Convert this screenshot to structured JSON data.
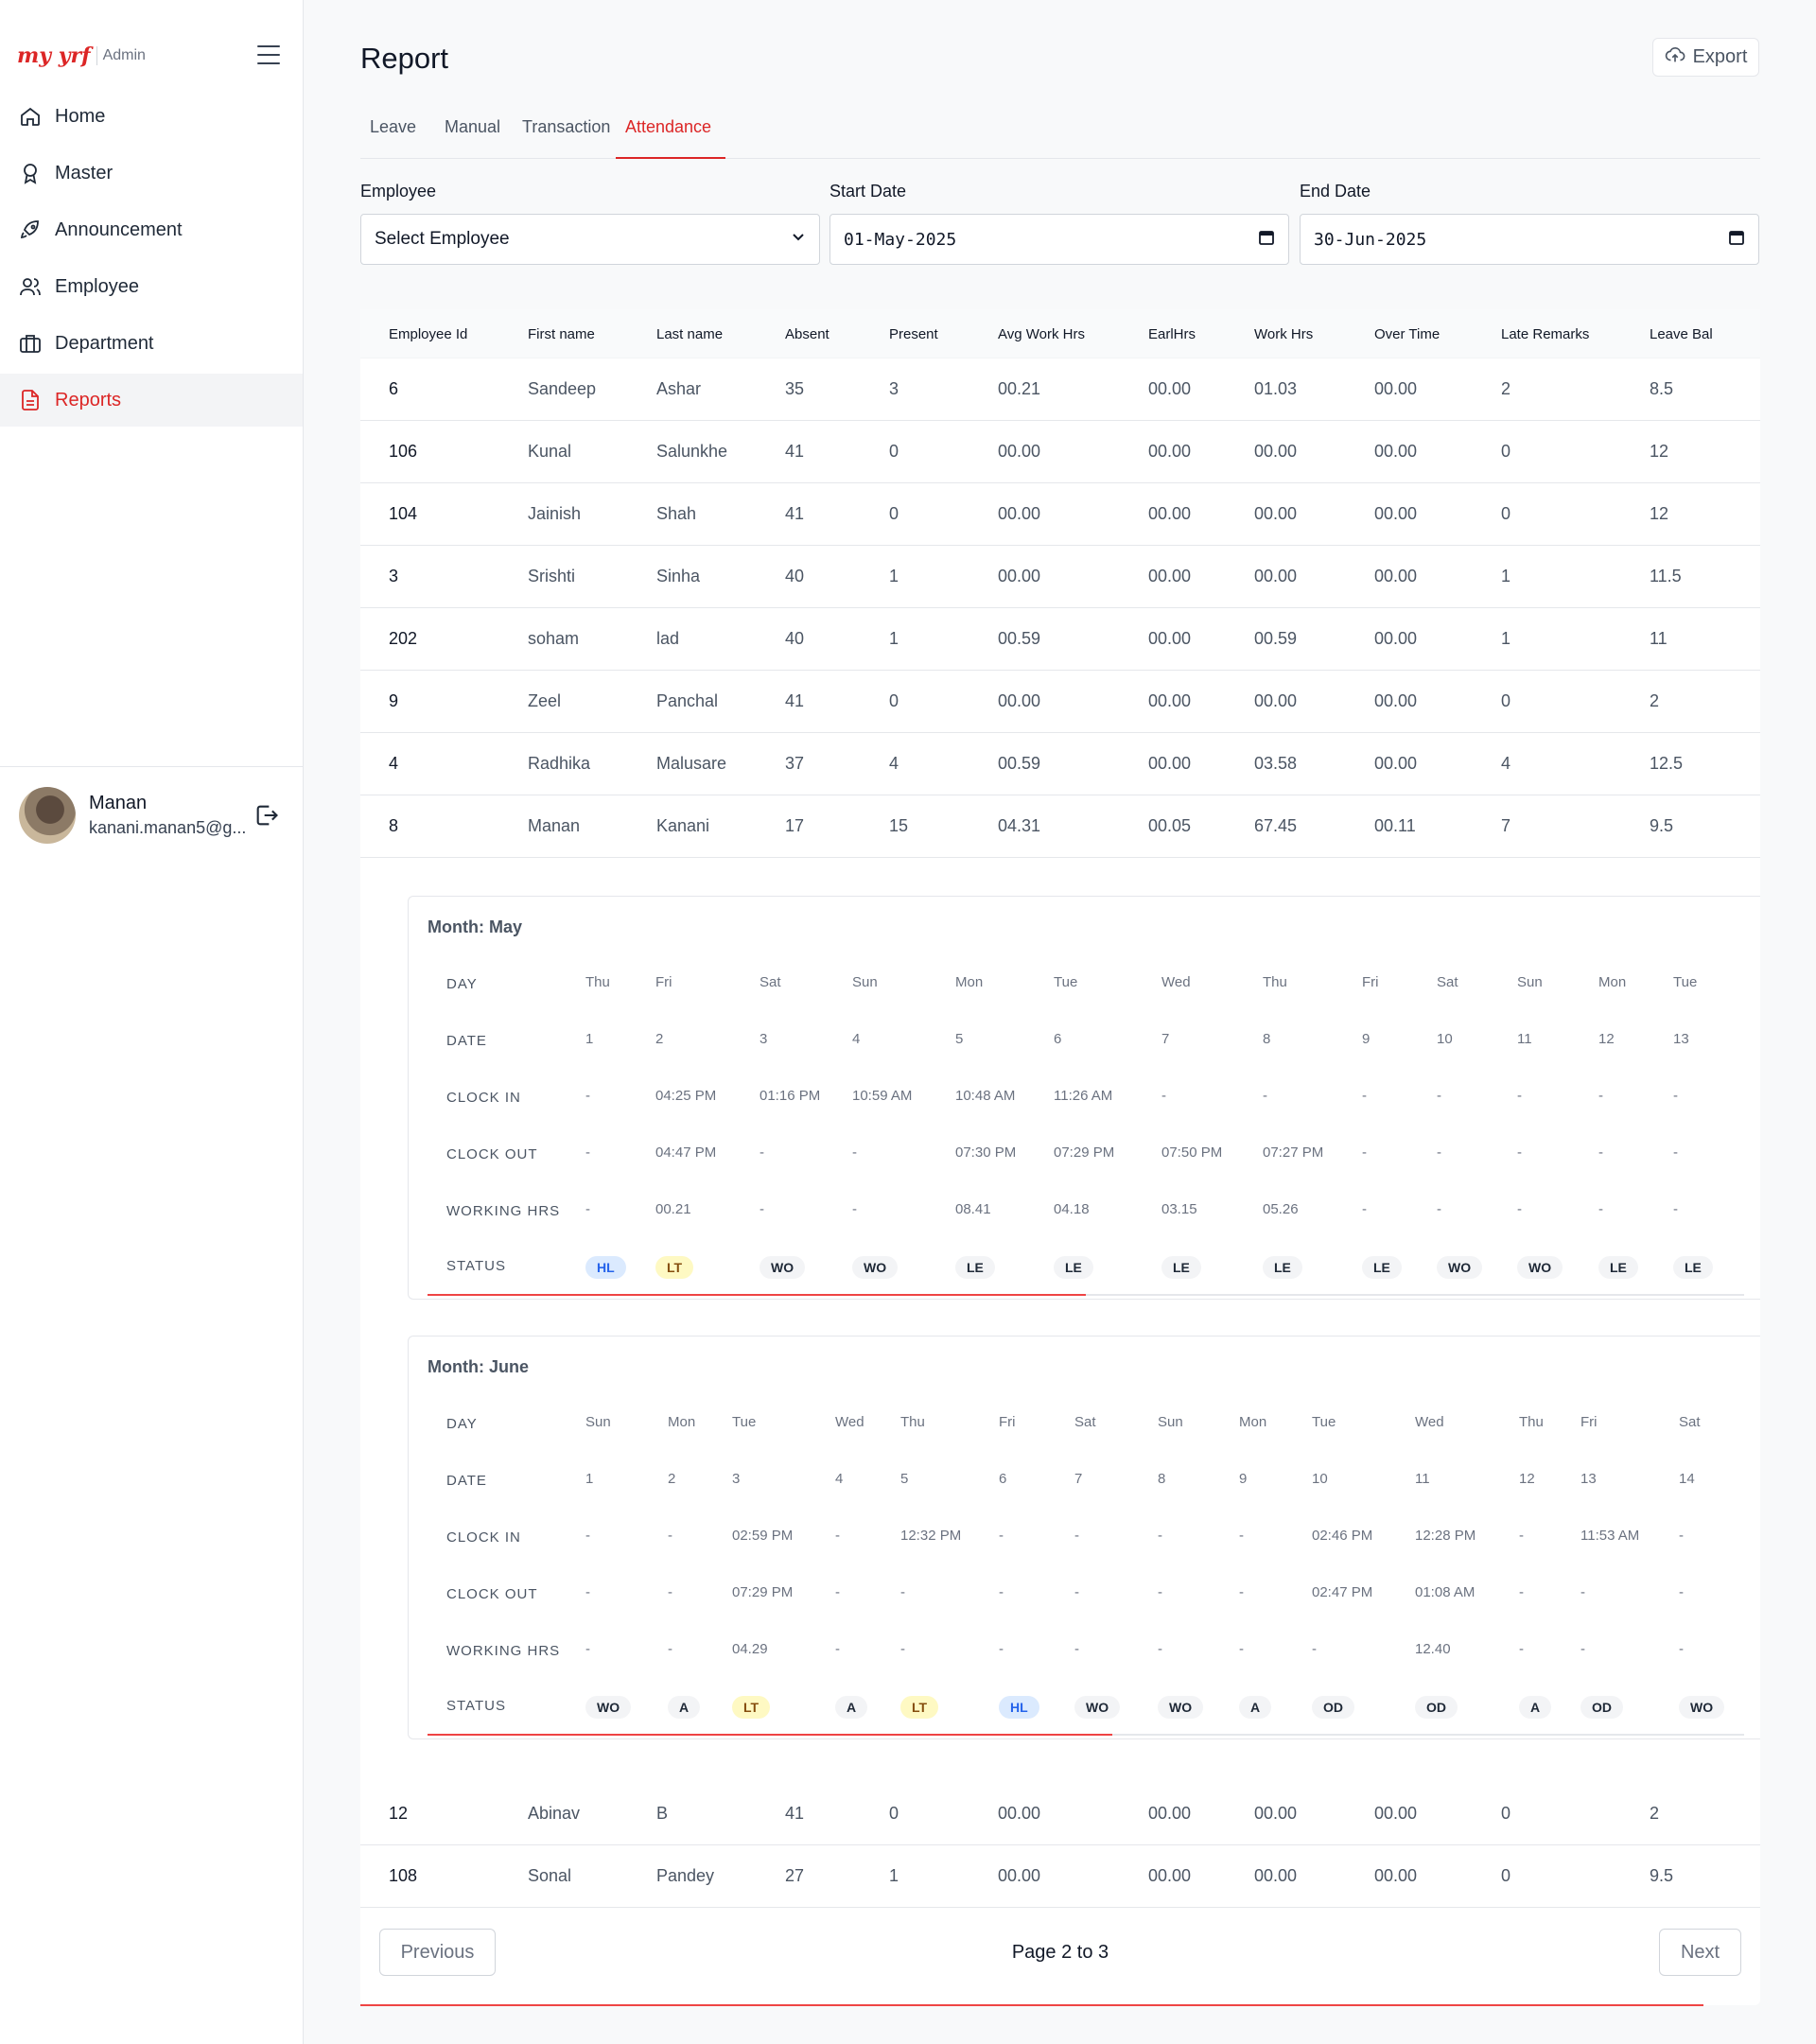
{
  "sidebar": {
    "brand": "my yrf",
    "brand_suffix": "Admin",
    "items": [
      {
        "label": "Home",
        "icon": "home-icon"
      },
      {
        "label": "Master",
        "icon": "award-icon"
      },
      {
        "label": "Announcement",
        "icon": "rocket-icon"
      },
      {
        "label": "Employee",
        "icon": "users-icon"
      },
      {
        "label": "Department",
        "icon": "briefcase-icon"
      },
      {
        "label": "Reports",
        "icon": "file-text-icon",
        "active": true
      }
    ],
    "user": {
      "name": "Manan",
      "email": "kanani.manan5@g..."
    }
  },
  "header": {
    "title": "Report",
    "export_label": "Export"
  },
  "tabs": [
    "Leave",
    "Manual",
    "Transaction",
    "Attendance"
  ],
  "active_tab": "Attendance",
  "filters": {
    "employee_label": "Employee",
    "employee_value": "Select Employee",
    "start_label": "Start Date",
    "start_value": "01-May-2025",
    "end_label": "End Date",
    "end_value": "30-Jun-2025"
  },
  "table": {
    "columns": [
      "Employee Id",
      "First name",
      "Last name",
      "Absent",
      "Present",
      "Avg Work Hrs",
      "EarlHrs",
      "Work Hrs",
      "Over Time",
      "Late Remarks",
      "Leave Bal"
    ],
    "rows_top": [
      [
        "6",
        "Sandeep",
        "Ashar",
        "35",
        "3",
        "00.21",
        "00.00",
        "01.03",
        "00.00",
        "2",
        "8.5"
      ],
      [
        "106",
        "Kunal",
        "Salunkhe",
        "41",
        "0",
        "00.00",
        "00.00",
        "00.00",
        "00.00",
        "0",
        "12"
      ],
      [
        "104",
        "Jainish",
        "Shah",
        "41",
        "0",
        "00.00",
        "00.00",
        "00.00",
        "00.00",
        "0",
        "12"
      ],
      [
        "3",
        "Srishti",
        "Sinha",
        "40",
        "1",
        "00.00",
        "00.00",
        "00.00",
        "00.00",
        "1",
        "11.5"
      ],
      [
        "202",
        "soham",
        "lad",
        "40",
        "1",
        "00.59",
        "00.00",
        "00.59",
        "00.00",
        "1",
        "11"
      ],
      [
        "9",
        "Zeel",
        "Panchal",
        "41",
        "0",
        "00.00",
        "00.00",
        "00.00",
        "00.00",
        "0",
        "2"
      ],
      [
        "4",
        "Radhika",
        "Malusare",
        "37",
        "4",
        "00.59",
        "00.00",
        "03.58",
        "00.00",
        "4",
        "12.5"
      ],
      [
        "8",
        "Manan",
        "Kanani",
        "17",
        "15",
        "04.31",
        "00.05",
        "67.45",
        "00.11",
        "7",
        "9.5"
      ]
    ],
    "rows_bottom": [
      [
        "12",
        "Abinav",
        "B",
        "41",
        "0",
        "00.00",
        "00.00",
        "00.00",
        "00.00",
        "0",
        "2"
      ],
      [
        "108",
        "Sonal",
        "Pandey",
        "27",
        "1",
        "00.00",
        "00.00",
        "00.00",
        "00.00",
        "0",
        "9.5"
      ]
    ]
  },
  "detail_labels": [
    "DAY",
    "DATE",
    "CLOCK IN",
    "CLOCK OUT",
    "WORKING HRS",
    "STATUS"
  ],
  "months": [
    {
      "title": "Month: May",
      "scroll_fraction": 0.5,
      "days": [
        {
          "day": "Thu",
          "date": "1",
          "in": "-",
          "out": "-",
          "hrs": "-",
          "status": "HL"
        },
        {
          "day": "Fri",
          "date": "2",
          "in": "04:25 PM",
          "out": "04:47 PM",
          "hrs": "00.21",
          "status": "LT"
        },
        {
          "day": "Sat",
          "date": "3",
          "in": "01:16 PM",
          "out": "-",
          "hrs": "-",
          "status": "WO"
        },
        {
          "day": "Sun",
          "date": "4",
          "in": "10:59 AM",
          "out": "-",
          "hrs": "-",
          "status": "WO"
        },
        {
          "day": "Mon",
          "date": "5",
          "in": "10:48 AM",
          "out": "07:30 PM",
          "hrs": "08.41",
          "status": "LE"
        },
        {
          "day": "Tue",
          "date": "6",
          "in": "11:26 AM",
          "out": "07:29 PM",
          "hrs": "04.18",
          "status": "LE"
        },
        {
          "day": "Wed",
          "date": "7",
          "in": "-",
          "out": "07:50 PM",
          "hrs": "03.15",
          "status": "LE"
        },
        {
          "day": "Thu",
          "date": "8",
          "in": "-",
          "out": "07:27 PM",
          "hrs": "05.26",
          "status": "LE"
        },
        {
          "day": "Fri",
          "date": "9",
          "in": "-",
          "out": "-",
          "hrs": "-",
          "status": "LE"
        },
        {
          "day": "Sat",
          "date": "10",
          "in": "-",
          "out": "-",
          "hrs": "-",
          "status": "WO"
        },
        {
          "day": "Sun",
          "date": "11",
          "in": "-",
          "out": "-",
          "hrs": "-",
          "status": "WO"
        },
        {
          "day": "Mon",
          "date": "12",
          "in": "-",
          "out": "-",
          "hrs": "-",
          "status": "LE"
        },
        {
          "day": "Tue",
          "date": "13",
          "in": "-",
          "out": "-",
          "hrs": "-",
          "status": "LE"
        }
      ]
    },
    {
      "title": "Month: June",
      "scroll_fraction": 0.52,
      "days": [
        {
          "day": "Sun",
          "date": "1",
          "in": "-",
          "out": "-",
          "hrs": "-",
          "status": "WO"
        },
        {
          "day": "Mon",
          "date": "2",
          "in": "-",
          "out": "-",
          "hrs": "-",
          "status": "A"
        },
        {
          "day": "Tue",
          "date": "3",
          "in": "02:59 PM",
          "out": "07:29 PM",
          "hrs": "04.29",
          "status": "LT"
        },
        {
          "day": "Wed",
          "date": "4",
          "in": "-",
          "out": "-",
          "hrs": "-",
          "status": "A"
        },
        {
          "day": "Thu",
          "date": "5",
          "in": "12:32 PM",
          "out": "-",
          "hrs": "-",
          "status": "LT"
        },
        {
          "day": "Fri",
          "date": "6",
          "in": "-",
          "out": "-",
          "hrs": "-",
          "status": "HL"
        },
        {
          "day": "Sat",
          "date": "7",
          "in": "-",
          "out": "-",
          "hrs": "-",
          "status": "WO"
        },
        {
          "day": "Sun",
          "date": "8",
          "in": "-",
          "out": "-",
          "hrs": "-",
          "status": "WO"
        },
        {
          "day": "Mon",
          "date": "9",
          "in": "-",
          "out": "-",
          "hrs": "-",
          "status": "A"
        },
        {
          "day": "Tue",
          "date": "10",
          "in": "02:46 PM",
          "out": "02:47 PM",
          "hrs": "-",
          "status": "OD"
        },
        {
          "day": "Wed",
          "date": "11",
          "in": "12:28 PM",
          "out": "01:08 AM",
          "hrs": "12.40",
          "status": "OD"
        },
        {
          "day": "Thu",
          "date": "12",
          "in": "-",
          "out": "-",
          "hrs": "-",
          "status": "A"
        },
        {
          "day": "Fri",
          "date": "13",
          "in": "11:53 AM",
          "out": "-",
          "hrs": "-",
          "status": "OD"
        },
        {
          "day": "Sat",
          "date": "14",
          "in": "-",
          "out": "-",
          "hrs": "-",
          "status": "WO"
        }
      ]
    }
  ],
  "pagination": {
    "previous": "Previous",
    "page_text": "Page 2 to 3",
    "next": "Next"
  },
  "colors": {
    "accent": "#dc2626",
    "hl_bg": "#dbeafe",
    "lt_bg": "#fef9c3",
    "badge_bg": "#f3f4f6"
  }
}
